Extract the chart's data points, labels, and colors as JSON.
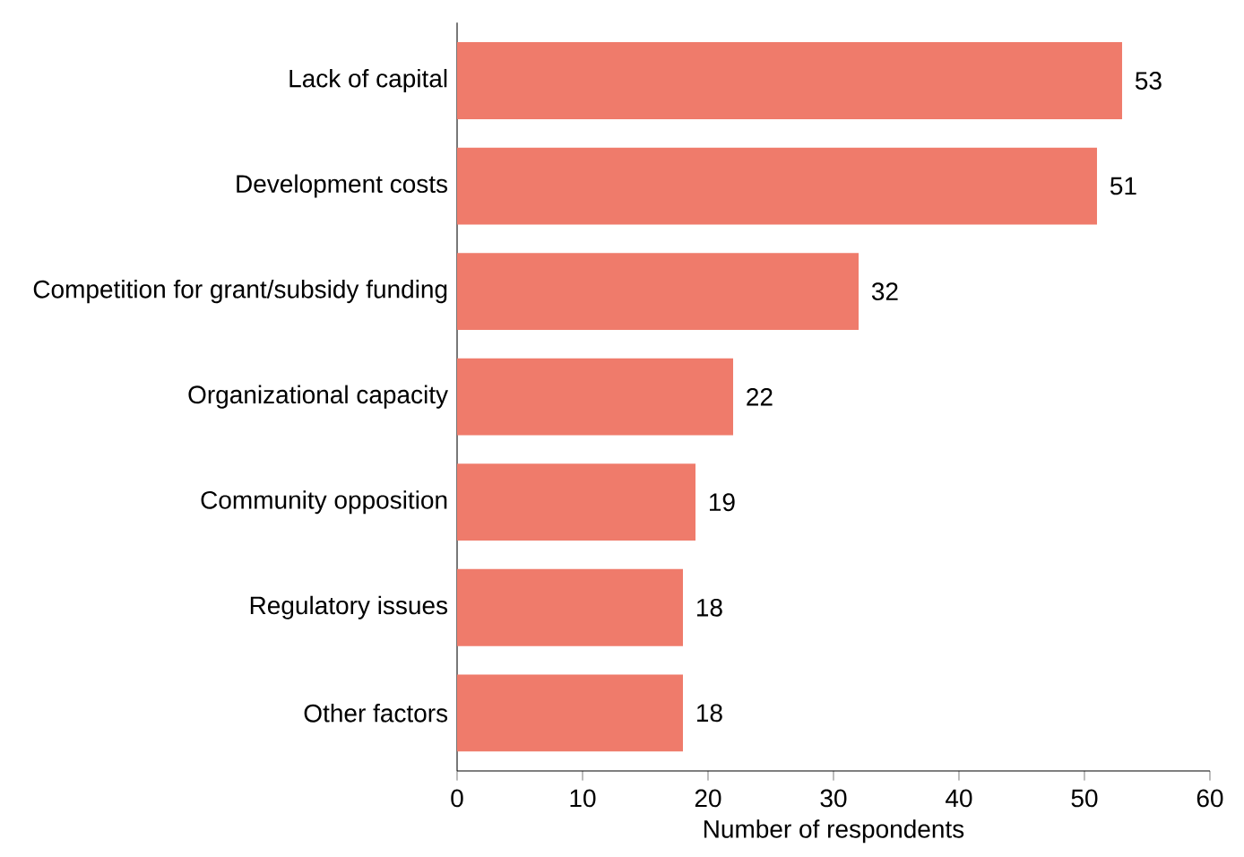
{
  "chart_data": {
    "type": "bar",
    "orientation": "horizontal",
    "xlabel": "Number of respondents",
    "categories": [
      "Lack of capital",
      "Development costs",
      "Competition for grant/subsidy funding",
      "Organizational capacity",
      "Community opposition",
      "Regulatory issues",
      "Other factors"
    ],
    "values": [
      53,
      51,
      32,
      22,
      19,
      18,
      18
    ],
    "color": "#ef7b6b",
    "xlim": [
      0,
      60
    ],
    "xticks": [
      0,
      10,
      20,
      30,
      40,
      50,
      60
    ],
    "data_labels": true,
    "grid": false
  }
}
